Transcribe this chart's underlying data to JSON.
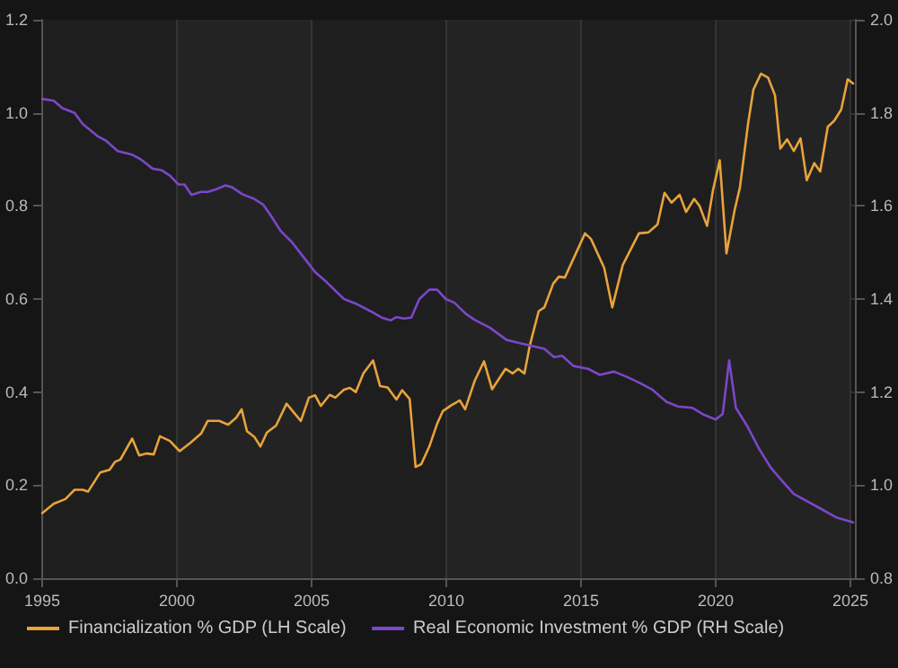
{
  "chart_data": {
    "type": "line",
    "series": [
      {
        "name": "Financialization % GDP (LH Scale)",
        "color": "#e8a33a",
        "x": [
          1995.0,
          1995.43,
          1995.86,
          1996.2,
          1996.5,
          1996.7,
          1997.15,
          1997.5,
          1997.7,
          1997.9,
          1998.34,
          1998.6,
          1998.88,
          1999.14,
          1999.37,
          1999.74,
          2000.1,
          2000.5,
          2000.9,
          2001.14,
          2001.57,
          2001.9,
          2002.2,
          2002.4,
          2002.6,
          2002.87,
          2003.1,
          2003.34,
          2003.68,
          2004.07,
          2004.6,
          2004.9,
          2005.13,
          2005.34,
          2005.67,
          2005.88,
          2006.2,
          2006.42,
          2006.64,
          2006.92,
          2007.28,
          2007.54,
          2007.82,
          2008.15,
          2008.36,
          2008.64,
          2008.86,
          2009.07,
          2009.37,
          2009.66,
          2009.87,
          2010.2,
          2010.5,
          2010.7,
          2011.06,
          2011.4,
          2011.7,
          2012.2,
          2012.46,
          2012.67,
          2012.9,
          2013.1,
          2013.43,
          2013.64,
          2013.97,
          2014.18,
          2014.4,
          2015.15,
          2015.37,
          2015.86,
          2016.16,
          2016.55,
          2017.15,
          2017.5,
          2017.84,
          2018.1,
          2018.36,
          2018.66,
          2018.9,
          2019.2,
          2019.4,
          2019.68,
          2019.9,
          2020.15,
          2020.4,
          2020.7,
          2020.9,
          2021.2,
          2021.4,
          2021.68,
          2021.94,
          2022.2,
          2022.4,
          2022.65,
          2022.9,
          2023.15,
          2023.38,
          2023.66,
          2023.88,
          2024.16,
          2024.4,
          2024.66,
          2024.9,
          2025.1
        ],
        "values": [
          0.14,
          0.16,
          0.17,
          0.19,
          0.19,
          0.186,
          0.227,
          0.233,
          0.25,
          0.255,
          0.3,
          0.264,
          0.268,
          0.266,
          0.305,
          0.295,
          0.273,
          0.291,
          0.311,
          0.338,
          0.338,
          0.33,
          0.345,
          0.363,
          0.316,
          0.304,
          0.283,
          0.313,
          0.328,
          0.375,
          0.338,
          0.388,
          0.393,
          0.37,
          0.394,
          0.388,
          0.405,
          0.409,
          0.4,
          0.44,
          0.468,
          0.413,
          0.41,
          0.384,
          0.404,
          0.385,
          0.239,
          0.245,
          0.283,
          0.332,
          0.359,
          0.372,
          0.382,
          0.363,
          0.425,
          0.466,
          0.406,
          0.45,
          0.44,
          0.45,
          0.44,
          0.5,
          0.574,
          0.582,
          0.633,
          0.648,
          0.646,
          0.741,
          0.729,
          0.667,
          0.582,
          0.673,
          0.741,
          0.743,
          0.76,
          0.828,
          0.807,
          0.824,
          0.787,
          0.815,
          0.8,
          0.757,
          0.834,
          0.898,
          0.698,
          0.79,
          0.84,
          0.976,
          1.05,
          1.084,
          1.076,
          1.038,
          0.923,
          0.943,
          0.918,
          0.945,
          0.855,
          0.892,
          0.874,
          0.97,
          0.983,
          1.007,
          1.072,
          1.063
        ]
      },
      {
        "name": "Real Economic Investment % GDP (RH Scale)",
        "color": "#7b47c9",
        "axis": "y2",
        "x": [
          1995.0,
          1995.43,
          1995.75,
          1996.2,
          1996.5,
          1997.05,
          1997.37,
          1997.8,
          1998.34,
          1998.66,
          1999.1,
          1999.42,
          1999.74,
          2000.06,
          2000.28,
          2000.54,
          2000.9,
          2001.14,
          2001.47,
          2001.8,
          2002.05,
          2002.43,
          2002.87,
          2003.2,
          2003.5,
          2003.84,
          2004.27,
          2004.7,
          2005.13,
          2005.56,
          2006.2,
          2006.64,
          2007.18,
          2007.6,
          2007.93,
          2008.15,
          2008.43,
          2008.7,
          2009.0,
          2009.37,
          2009.66,
          2009.98,
          2010.3,
          2010.73,
          2011.06,
          2011.6,
          2012.24,
          2012.67,
          2013.1,
          2013.64,
          2014.0,
          2014.3,
          2014.72,
          2015.26,
          2015.7,
          2016.23,
          2016.77,
          2017.2,
          2017.63,
          2018.17,
          2018.6,
          2019.14,
          2019.57,
          2020.0,
          2020.26,
          2020.5,
          2020.75,
          2021.18,
          2021.6,
          2022.05,
          2022.48,
          2022.9,
          2023.34,
          2023.88,
          2024.5,
          2025.1
        ],
        "values": [
          1.83,
          1.826,
          1.81,
          1.8,
          1.776,
          1.75,
          1.74,
          1.718,
          1.71,
          1.7,
          1.68,
          1.677,
          1.665,
          1.646,
          1.646,
          1.624,
          1.63,
          1.63,
          1.636,
          1.644,
          1.64,
          1.625,
          1.615,
          1.603,
          1.578,
          1.547,
          1.522,
          1.49,
          1.458,
          1.436,
          1.4,
          1.39,
          1.374,
          1.36,
          1.354,
          1.361,
          1.358,
          1.36,
          1.4,
          1.42,
          1.42,
          1.4,
          1.392,
          1.368,
          1.355,
          1.339,
          1.312,
          1.306,
          1.3,
          1.293,
          1.275,
          1.278,
          1.256,
          1.25,
          1.237,
          1.244,
          1.231,
          1.219,
          1.206,
          1.179,
          1.169,
          1.166,
          1.151,
          1.141,
          1.153,
          1.268,
          1.166,
          1.126,
          1.079,
          1.037,
          1.008,
          0.981,
          0.967,
          0.95,
          0.93,
          0.92
        ]
      }
    ],
    "xlim": [
      1995,
      2025.2
    ],
    "xticks": [
      1995,
      2000,
      2005,
      2010,
      2015,
      2020,
      2025
    ],
    "ylim": [
      0,
      1.2
    ],
    "yticks": [
      {
        "value": 0,
        "label": "0.0"
      },
      0.2,
      0.4,
      0.6,
      0.8,
      {
        "value": 1,
        "label": "1.0"
      },
      1.2
    ],
    "y2lim": [
      0.8,
      2.0
    ],
    "y2ticks": [
      0.8,
      {
        "value": 1,
        "label": "1.0"
      },
      1.2,
      1.4,
      1.6,
      1.8,
      {
        "value": 2,
        "label": "2.0"
      }
    ],
    "grid": true,
    "legend": "bottom left",
    "marker": "none",
    "line_style": "solid"
  }
}
